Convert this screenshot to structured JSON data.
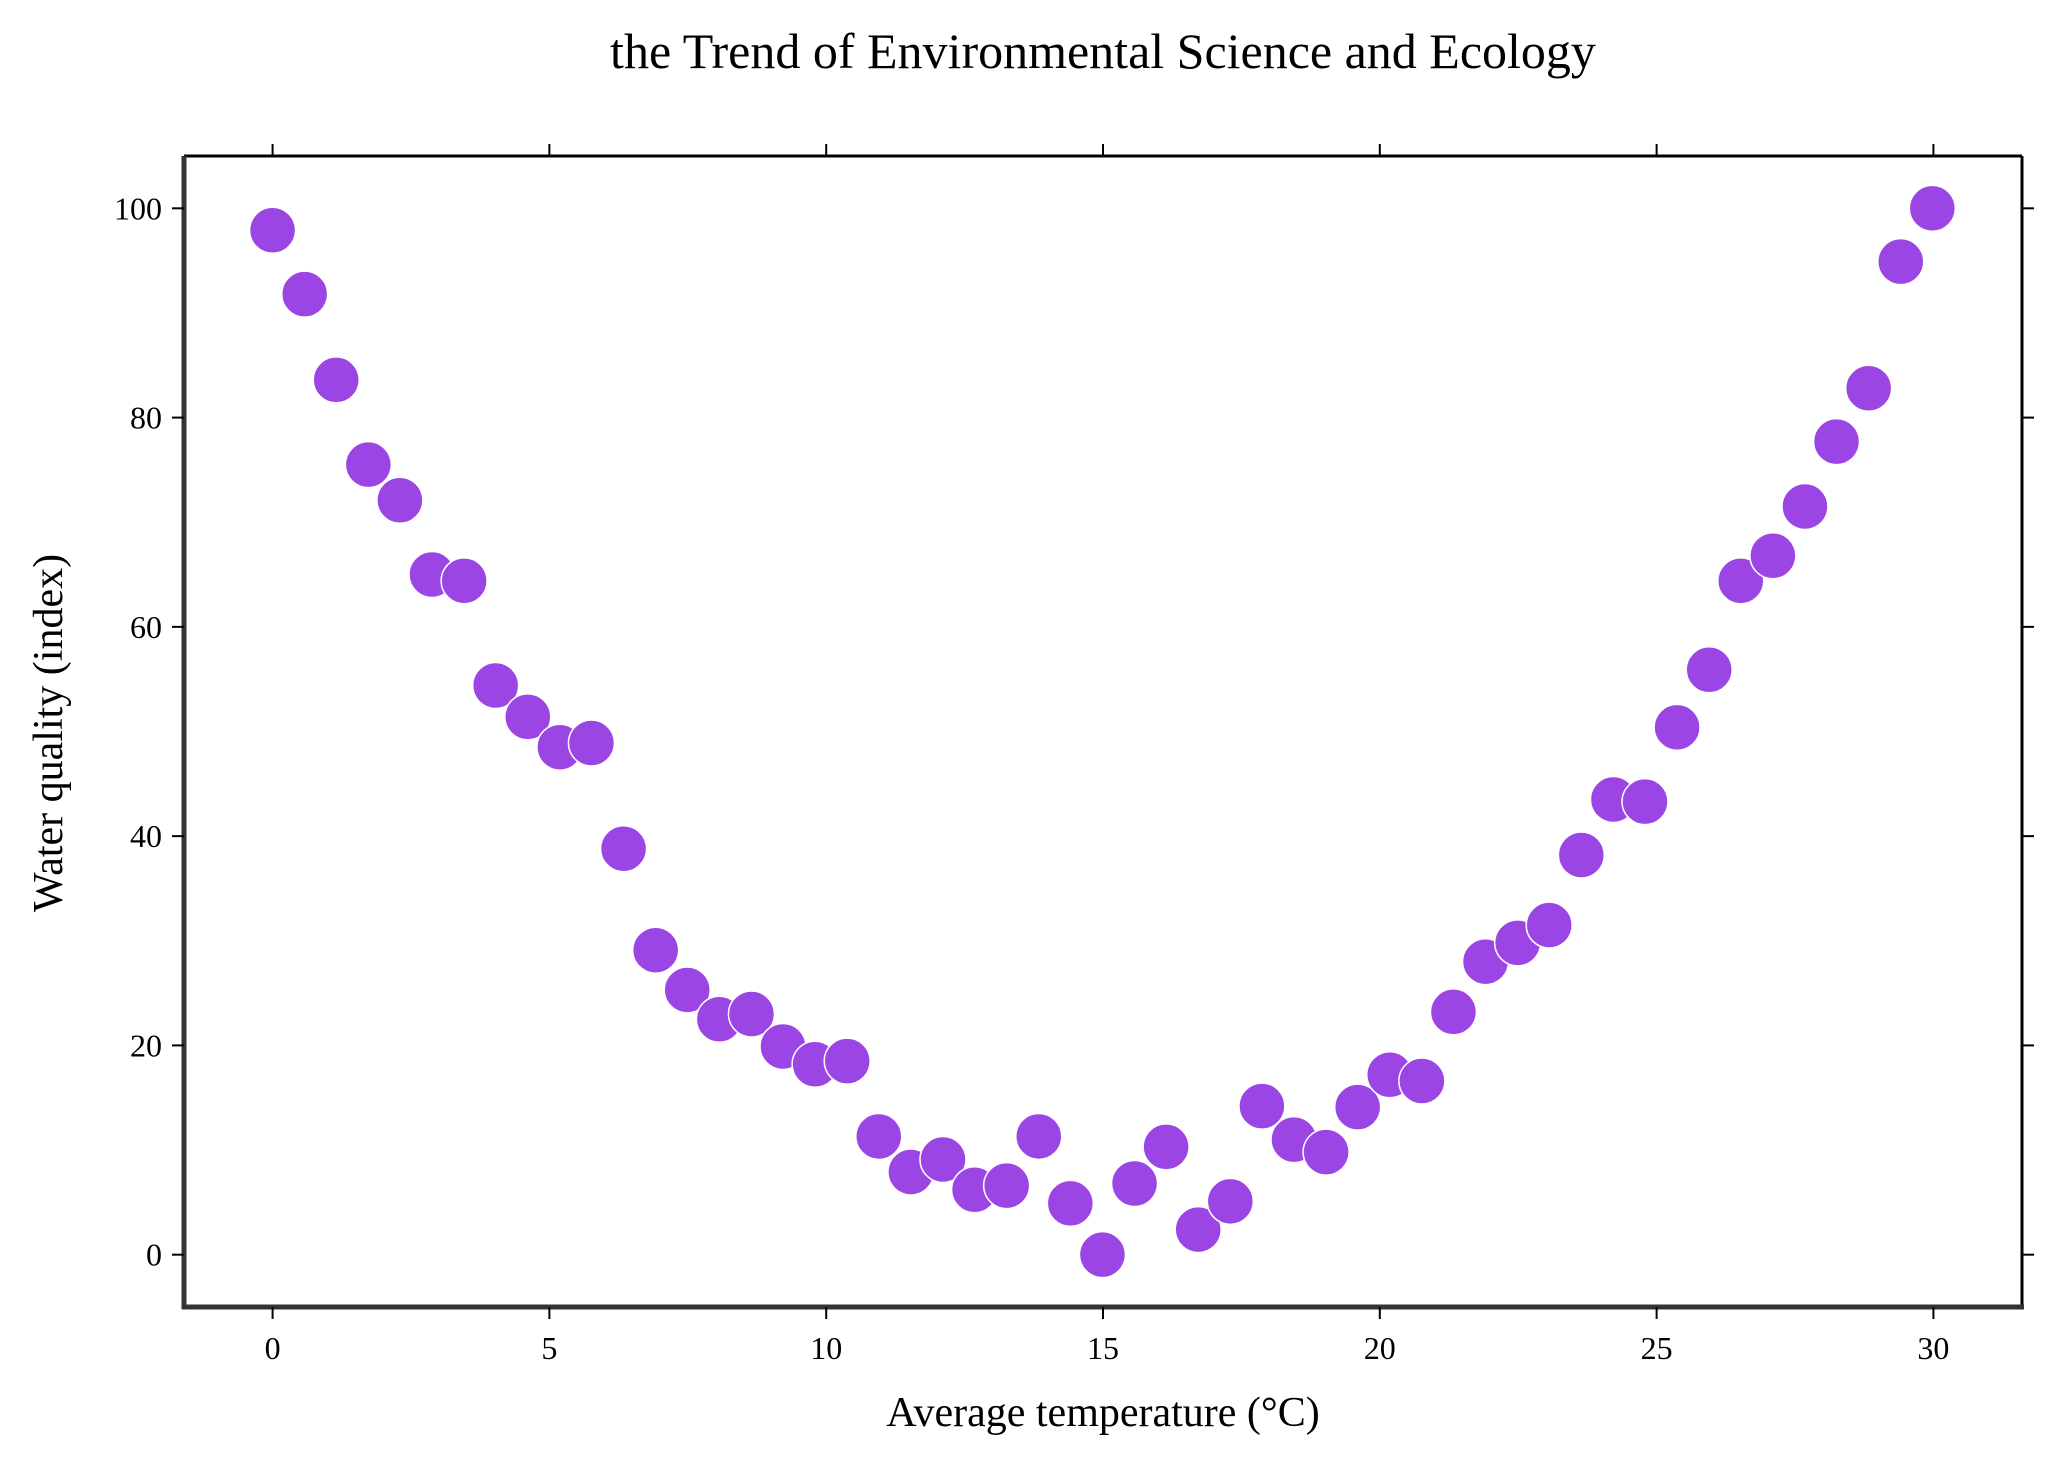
{
  "chart_data": {
    "type": "scatter",
    "title": "the Trend of Environmental Science and Ecology",
    "xlabel": "Average temperature (°C)",
    "ylabel": "Water quality (index)",
    "xlim": [
      -1.6,
      31.6
    ],
    "ylim": [
      -5,
      105
    ],
    "xticks": [
      0,
      5,
      10,
      15,
      20,
      25,
      30
    ],
    "yticks": [
      0,
      20,
      40,
      60,
      80,
      100
    ],
    "grid": false,
    "marker_color": "#9b45e4",
    "marker_edge_color": "#ffffff",
    "series": [
      {
        "x": [
          0.0,
          0.58,
          1.15,
          1.73,
          2.3,
          2.88,
          3.46,
          4.03,
          4.61,
          5.19,
          5.76,
          6.34,
          6.92,
          7.49,
          8.07,
          8.65,
          9.22,
          9.8,
          10.38,
          10.95,
          11.53,
          12.11,
          12.68,
          13.26,
          13.84,
          14.41,
          14.99,
          15.57,
          16.14,
          16.72,
          17.3,
          17.87,
          18.45,
          19.03,
          19.6,
          20.18,
          20.76,
          21.33,
          21.91,
          22.49,
          23.06,
          23.64,
          24.22,
          24.79,
          25.37,
          25.95,
          26.52,
          27.1,
          27.68,
          28.25,
          28.83,
          29.41,
          29.98
        ],
        "y": [
          97.9,
          91.8,
          83.6,
          75.5,
          72.1,
          65.0,
          64.4,
          54.4,
          51.4,
          48.5,
          48.9,
          38.8,
          29.1,
          25.3,
          22.5,
          23.0,
          19.9,
          18.2,
          18.5,
          11.3,
          7.9,
          9.1,
          6.2,
          6.6,
          11.3,
          4.9,
          0.0,
          6.8,
          10.3,
          2.4,
          5.1,
          14.2,
          11.0,
          9.8,
          14.1,
          17.2,
          16.6,
          23.2,
          28.0,
          29.8,
          31.5,
          38.2,
          43.5,
          43.3,
          50.4,
          55.9,
          64.4,
          66.8,
          71.5,
          77.7,
          82.8,
          94.9,
          100.0
        ]
      }
    ]
  }
}
